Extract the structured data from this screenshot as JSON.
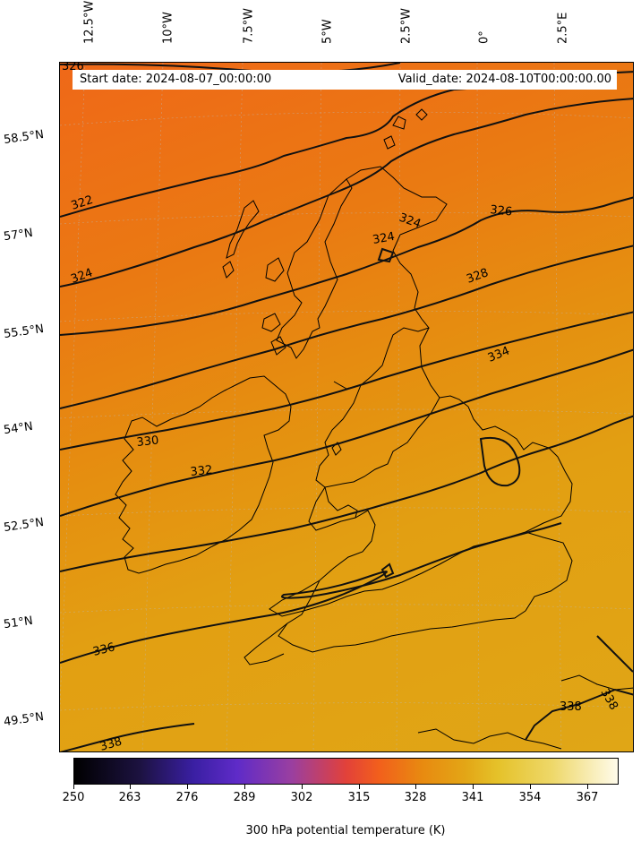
{
  "header": {
    "start_date": "Start date: 2024-08-07_00:00:00",
    "valid_date": "Valid_date: 2024-08-10T00:00:00.00"
  },
  "longitude_labels": [
    "12.5°W",
    "10°W",
    "7.5°W",
    "5°W",
    "2.5°W",
    "0°",
    "2.5°E"
  ],
  "latitude_labels": [
    "58.5°N",
    "57°N",
    "55.5°N",
    "54°N",
    "52.5°N",
    "51°N",
    "49.5°N"
  ],
  "contour_labels": [
    "326",
    "322",
    "324",
    "324",
    "324",
    "326",
    "328",
    "334",
    "330",
    "332",
    "336",
    "338",
    "338",
    "338"
  ],
  "colorbar": {
    "ticks": [
      "250",
      "263",
      "276",
      "289",
      "302",
      "315",
      "328",
      "341",
      "354",
      "367"
    ],
    "range": [
      250,
      373
    ],
    "title": "300 hPa potential temperature (K)"
  },
  "colors": {
    "field_cool": "#ef6818",
    "field_warm": "#e0a616",
    "contour": "#111111"
  }
}
